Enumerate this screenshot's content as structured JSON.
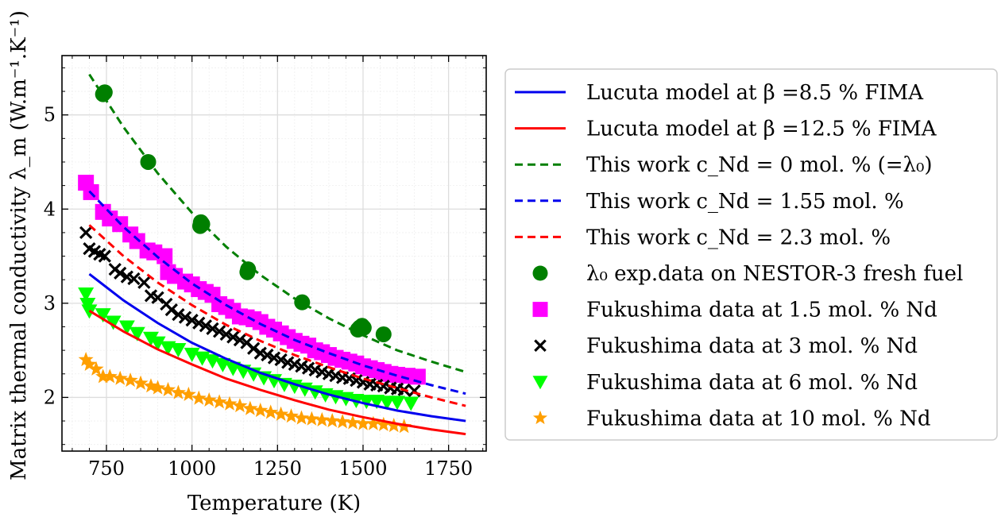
{
  "chart_data": {
    "type": "scatter",
    "xlabel": "Temperature (K)",
    "ylabel": "Matrix thermal conductivity λ_m (W.m⁻¹.K⁻¹)",
    "xlim": [
      620,
      1860
    ],
    "ylim": [
      1.43,
      5.63
    ],
    "x_ticks": [
      750,
      1000,
      1250,
      1500,
      1750
    ],
    "y_ticks": [
      2,
      3,
      4,
      5
    ],
    "grid": true,
    "legend_position": "outside-right",
    "series": [
      {
        "name": "Lucuta model at β =8.5 % FIMA",
        "kind": "line",
        "dash": "solid",
        "color": "#0000ee",
        "marker": "none",
        "x": [
          700,
          800,
          900,
          1000,
          1100,
          1200,
          1300,
          1400,
          1500,
          1600,
          1700,
          1800
        ],
        "y": [
          3.31,
          3.03,
          2.79,
          2.58,
          2.41,
          2.26,
          2.14,
          2.03,
          1.94,
          1.86,
          1.8,
          1.75
        ]
      },
      {
        "name": "Lucuta model at β =12.5 % FIMA",
        "kind": "line",
        "dash": "solid",
        "color": "#ff0000",
        "marker": "none",
        "x": [
          700,
          800,
          900,
          1000,
          1100,
          1200,
          1300,
          1400,
          1500,
          1600,
          1700,
          1800
        ],
        "y": [
          2.92,
          2.7,
          2.51,
          2.35,
          2.2,
          2.08,
          1.97,
          1.87,
          1.79,
          1.72,
          1.66,
          1.61
        ]
      },
      {
        "name": "This work c_Nd = 0 mol. % (=λ₀)",
        "kind": "line",
        "dash": "dashed",
        "color": "#007f00",
        "marker": "none",
        "x": [
          700,
          800,
          900,
          1000,
          1100,
          1200,
          1300,
          1400,
          1500,
          1600,
          1700,
          1800
        ],
        "y": [
          5.43,
          4.87,
          4.38,
          3.96,
          3.6,
          3.3,
          3.05,
          2.84,
          2.66,
          2.5,
          2.38,
          2.27
        ]
      },
      {
        "name": "This work c_Nd = 1.55 mol. %",
        "kind": "line",
        "dash": "dashed",
        "color": "#0000ee",
        "marker": "none",
        "x": [
          700,
          800,
          900,
          1000,
          1100,
          1200,
          1300,
          1400,
          1500,
          1600,
          1700,
          1800
        ],
        "y": [
          4.19,
          3.81,
          3.49,
          3.21,
          2.98,
          2.78,
          2.61,
          2.47,
          2.34,
          2.23,
          2.13,
          2.04
        ]
      },
      {
        "name": "This work c_Nd = 2.3 mol. %",
        "kind": "line",
        "dash": "dashed",
        "color": "#ff0000",
        "marker": "none",
        "x": [
          700,
          800,
          900,
          1000,
          1100,
          1200,
          1300,
          1400,
          1500,
          1600,
          1700,
          1800
        ],
        "y": [
          3.83,
          3.5,
          3.22,
          2.98,
          2.77,
          2.6,
          2.45,
          2.32,
          2.2,
          2.1,
          2.0,
          1.91
        ]
      },
      {
        "name": "λ₀ exp.data on NESTOR-3 fresh fuel",
        "kind": "points",
        "color": "#007f00",
        "marker": "circle",
        "x": [
          740,
          745,
          872,
          1024,
          1026,
          1030,
          1162,
          1164,
          1322,
          1485,
          1490,
          1497,
          1502,
          1560
        ],
        "y": [
          5.22,
          5.24,
          4.5,
          3.82,
          3.86,
          3.84,
          3.33,
          3.36,
          3.01,
          2.72,
          2.74,
          2.76,
          2.74,
          2.67
        ]
      },
      {
        "name": "Fukushima data at 1.5 mol. % Nd",
        "kind": "points",
        "color": "#ff00ff",
        "marker": "square",
        "x": [
          690,
          705,
          740,
          760,
          790,
          820,
          840,
          870,
          890,
          920,
          930,
          950,
          980,
          1000,
          1020,
          1040,
          1060,
          1080,
          1100,
          1120,
          1140,
          1160,
          1180,
          1200,
          1220,
          1240,
          1260,
          1280,
          1300,
          1320,
          1340,
          1360,
          1380,
          1400,
          1420,
          1440,
          1460,
          1480,
          1500,
          1520,
          1540,
          1560,
          1580,
          1600,
          1630,
          1660
        ],
        "y": [
          4.28,
          4.18,
          3.97,
          3.9,
          3.84,
          3.73,
          3.66,
          3.56,
          3.54,
          3.5,
          3.33,
          3.29,
          3.23,
          3.2,
          3.15,
          3.12,
          3.09,
          2.99,
          2.96,
          2.92,
          2.86,
          2.85,
          2.83,
          2.8,
          2.75,
          2.72,
          2.68,
          2.64,
          2.6,
          2.57,
          2.55,
          2.5,
          2.48,
          2.45,
          2.42,
          2.4,
          2.38,
          2.36,
          2.33,
          2.31,
          2.29,
          2.27,
          2.25,
          2.24,
          2.23,
          2.22
        ]
      },
      {
        "name": "Fukushima data at 3 mol. % Nd",
        "kind": "points",
        "color": "#000000",
        "marker": "x",
        "x": [
          690,
          700,
          715,
          730,
          745,
          775,
          790,
          810,
          830,
          860,
          880,
          900,
          925,
          940,
          960,
          980,
          1000,
          1020,
          1040,
          1060,
          1080,
          1100,
          1120,
          1140,
          1160,
          1180,
          1200,
          1220,
          1240,
          1260,
          1280,
          1300,
          1320,
          1340,
          1360,
          1380,
          1400,
          1420,
          1440,
          1460,
          1480,
          1500,
          1520,
          1540,
          1560,
          1580,
          1600,
          1620,
          1650
        ],
        "y": [
          3.75,
          3.58,
          3.55,
          3.52,
          3.5,
          3.36,
          3.32,
          3.28,
          3.26,
          3.22,
          3.08,
          3.06,
          2.99,
          2.93,
          2.88,
          2.85,
          2.82,
          2.79,
          2.76,
          2.73,
          2.7,
          2.67,
          2.64,
          2.61,
          2.58,
          2.52,
          2.47,
          2.45,
          2.42,
          2.4,
          2.37,
          2.35,
          2.33,
          2.31,
          2.29,
          2.27,
          2.25,
          2.23,
          2.21,
          2.2,
          2.18,
          2.16,
          2.14,
          2.13,
          2.12,
          2.1,
          2.09,
          2.08,
          2.07
        ]
      },
      {
        "name": "Fukushima data at 6 mol. % Nd",
        "kind": "points",
        "color": "#00ff00",
        "marker": "triangle-down",
        "x": [
          690,
          695,
          700,
          740,
          770,
          810,
          840,
          880,
          900,
          930,
          960,
          1000,
          1030,
          1060,
          1090,
          1120,
          1150,
          1180,
          1210,
          1240,
          1270,
          1300,
          1330,
          1360,
          1390,
          1420,
          1450,
          1480,
          1510,
          1540,
          1570,
          1600,
          1640
        ],
        "y": [
          3.1,
          2.99,
          2.92,
          2.88,
          2.8,
          2.75,
          2.68,
          2.63,
          2.58,
          2.53,
          2.51,
          2.46,
          2.42,
          2.39,
          2.35,
          2.31,
          2.28,
          2.25,
          2.21,
          2.18,
          2.14,
          2.12,
          2.09,
          2.06,
          2.03,
          2.01,
          1.99,
          1.97,
          1.96,
          1.96,
          1.95,
          1.95,
          1.94
        ]
      },
      {
        "name": "Fukushima data at 10 mol. % Nd",
        "kind": "points",
        "color": "#ff9f00",
        "marker": "star",
        "x": [
          690,
          700,
          720,
          740,
          760,
          790,
          820,
          850,
          880,
          900,
          930,
          960,
          990,
          1020,
          1050,
          1080,
          1110,
          1140,
          1170,
          1200,
          1230,
          1260,
          1290,
          1320,
          1350,
          1380,
          1410,
          1440,
          1470,
          1500,
          1530,
          1560,
          1590,
          1620
        ],
        "y": [
          2.4,
          2.35,
          2.3,
          2.22,
          2.22,
          2.2,
          2.18,
          2.15,
          2.12,
          2.1,
          2.08,
          2.05,
          2.03,
          1.99,
          1.97,
          1.95,
          1.93,
          1.91,
          1.88,
          1.86,
          1.84,
          1.82,
          1.8,
          1.78,
          1.77,
          1.76,
          1.75,
          1.74,
          1.73,
          1.72,
          1.72,
          1.71,
          1.7,
          1.69
        ]
      }
    ]
  }
}
